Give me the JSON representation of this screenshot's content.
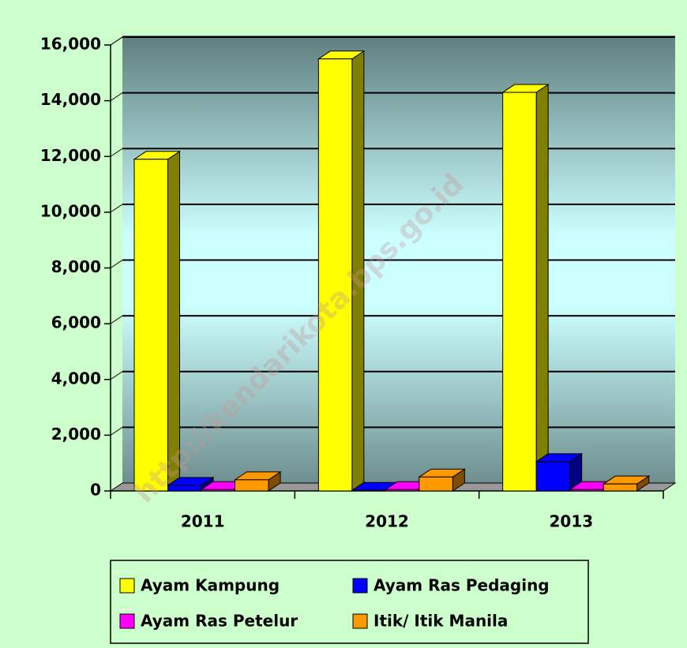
{
  "chart_data": {
    "type": "bar3d",
    "categories": [
      "2011",
      "2012",
      "2013"
    ],
    "series": [
      {
        "name": "Ayam Kampung",
        "color": "#ffff00",
        "values": [
          11900,
          15500,
          14300
        ]
      },
      {
        "name": "Ayam Ras Pedaging",
        "color": "#0000ff",
        "values": [
          200,
          20,
          1050
        ]
      },
      {
        "name": "Ayam Ras Petelur",
        "color": "#ff00ff",
        "values": [
          50,
          50,
          50
        ]
      },
      {
        "name": "Itik/ Itik Manila",
        "color": "#ff9900",
        "values": [
          400,
          500,
          250
        ]
      }
    ],
    "ylim": [
      0,
      16000
    ],
    "yticks": [
      0,
      {
        "value": 2000,
        "label": "2,000"
      },
      {
        "value": 4000,
        "label": "4,000"
      },
      {
        "value": 6000,
        "label": "6,000"
      },
      {
        "value": 8000,
        "label": "8,000"
      },
      {
        "value": 10000,
        "label": "10,000"
      },
      {
        "value": 12000,
        "label": "12,000"
      },
      {
        "value": 14000,
        "label": "14,000"
      },
      {
        "value": 16000,
        "label": "16,000"
      }
    ],
    "grid": true,
    "watermark": "http://kendarikota.bps.go.id"
  }
}
